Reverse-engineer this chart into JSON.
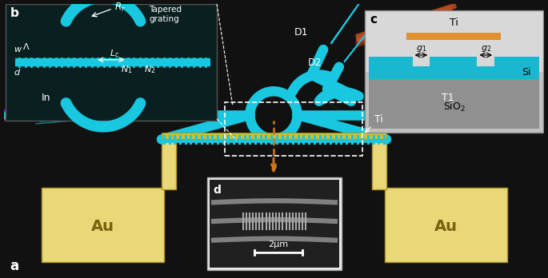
{
  "bg_color": "#111111",
  "cyan": "#18c8e0",
  "gold": "#e8d878",
  "gold_dark": "#b0952a",
  "ti_color": "#d4c840",
  "ti_bar_color": "#d0c030",
  "orange_arr": "#d07820",
  "panel_b_bg": "#0a2020",
  "panel_c_bg_top": "#d8d8d8",
  "panel_c_bg_bot": "#b8b8b8",
  "ti_strip": "#e09030",
  "si_blue": "#18b8d0",
  "sio2_gray": "#909090",
  "sem_bg": "#181818",
  "sem_wg": "#787878",
  "white": "#ffffff",
  "rainbow": [
    "#ff1010",
    "#ff7000",
    "#ffdd00",
    "#22ee22",
    "#2266ff",
    "#aa00ff"
  ],
  "green_fiber": "#40c040",
  "red_fiber": "#c04010",
  "labels_white": [
    "D1",
    "D2",
    "Ti",
    "In",
    "T1",
    "a"
  ],
  "labels_black": [
    "Au",
    "b",
    "c",
    "d"
  ],
  "scale_label": "2μm"
}
